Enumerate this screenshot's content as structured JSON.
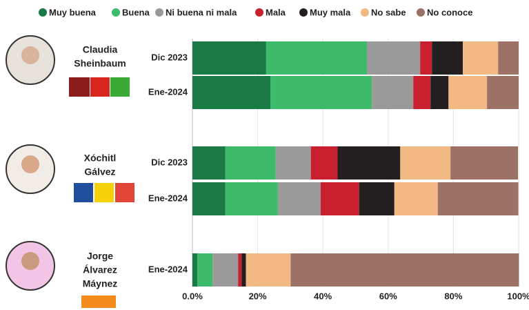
{
  "chart_data": {
    "type": "stacked-bar-horizontal",
    "groups": [
      {
        "name": [
          "Claudia",
          "Sheinbaum"
        ],
        "categories": [
          "Dic 2023",
          "Ene-2024"
        ]
      },
      {
        "name": [
          "Xóchitl",
          "Gálvez"
        ],
        "categories": [
          "Dic 2023",
          "Ene-2024"
        ]
      },
      {
        "name": [
          "Jorge",
          "Álvarez",
          "Máynez"
        ],
        "categories": [
          "Ene-2024"
        ]
      }
    ],
    "series": [
      {
        "name": "Muy buena",
        "color": "#1a7a45",
        "values": [
          22.6,
          23.9,
          10.1,
          10.1,
          1.5
        ]
      },
      {
        "name": "Buena",
        "color": "#3dba6a",
        "values": [
          30.9,
          31.1,
          15.4,
          16.1,
          4.7
        ]
      },
      {
        "name": "Ni buena ni mala",
        "color": "#9a9a9a",
        "values": [
          16.3,
          12.7,
          10.8,
          13.1,
          7.8
        ]
      },
      {
        "name": "Mala",
        "color": "#c8202e",
        "values": [
          3.6,
          5.3,
          8.2,
          11.8,
          1.1
        ]
      },
      {
        "name": "Muy mala",
        "color": "#231f20",
        "values": [
          9.5,
          5.5,
          19.2,
          10.8,
          1.3
        ]
      },
      {
        "name": "No sabe",
        "color": "#f2b985",
        "values": [
          10.8,
          11.8,
          15.4,
          13.3,
          13.7
        ]
      },
      {
        "name": "No conoce",
        "color": "#9b7265",
        "values": [
          6.3,
          9.7,
          20.7,
          24.7,
          70.0
        ]
      }
    ],
    "xlim": [
      0,
      100
    ],
    "xticks": [
      {
        "value": 0,
        "label": "0.0%"
      },
      {
        "value": 20,
        "label": "20%"
      },
      {
        "value": 40,
        "label": "40%"
      },
      {
        "value": 60,
        "label": "60%"
      },
      {
        "value": 80,
        "label": "80%"
      },
      {
        "value": 100,
        "label": "100%"
      }
    ],
    "grid": true
  }
}
